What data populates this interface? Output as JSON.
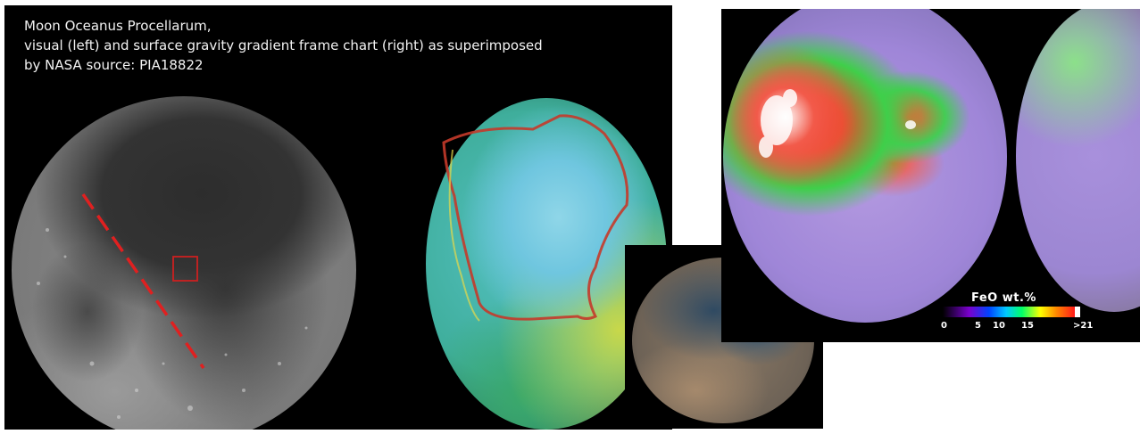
{
  "caption": {
    "line1": "Moon Oceanus Procellarum,",
    "line2": "visual (left) and surface gravity gradient frame  chart (right)  as superimposed",
    "line3": "by NASA source: PIA18822"
  },
  "legend": {
    "title": "FeO wt.%",
    "ticks": [
      "0",
      "5",
      "10",
      "15",
      ">21"
    ]
  },
  "colors": {
    "dashed_line": "#e02020",
    "target_box": "#cc2020",
    "gravity_rim": "#c43a2a"
  }
}
